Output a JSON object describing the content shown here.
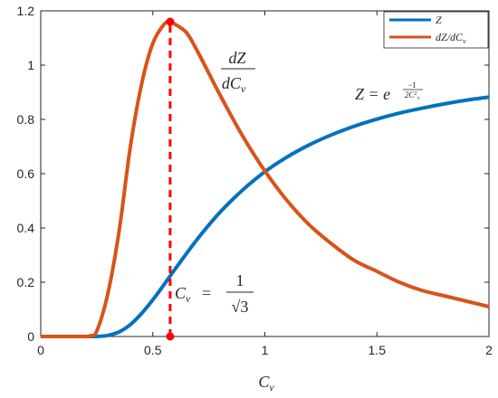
{
  "chart_data": {
    "type": "line",
    "xlabel": "C_v",
    "ylabel": "",
    "xlim": [
      0,
      2
    ],
    "ylim": [
      0,
      1.2
    ],
    "xticks": [
      "0",
      "0.5",
      "1",
      "1.5",
      "2"
    ],
    "yticks": [
      "0",
      "0.2",
      "0.4",
      "0.6",
      "0.8",
      "1",
      "1.2"
    ],
    "grid": false,
    "legend_position": "top-right",
    "series": [
      {
        "name": "Z",
        "color": "#0072BD",
        "x": [
          0,
          0.2,
          0.25,
          0.3,
          0.35,
          0.4,
          0.45,
          0.5,
          0.55,
          0.5774,
          0.6,
          0.7,
          0.8,
          0.9,
          1.0,
          1.1,
          1.2,
          1.3,
          1.4,
          1.5,
          1.6,
          1.7,
          1.8,
          1.9,
          2.0
        ],
        "y": [
          0,
          0.0,
          0.0003,
          0.004,
          0.017,
          0.044,
          0.085,
          0.135,
          0.191,
          0.223,
          0.249,
          0.36,
          0.458,
          0.539,
          0.607,
          0.662,
          0.707,
          0.744,
          0.775,
          0.801,
          0.823,
          0.841,
          0.857,
          0.871,
          0.882
        ]
      },
      {
        "name": "dZ/dC_v",
        "color": "#D95319",
        "x": [
          0,
          0.2,
          0.22,
          0.25,
          0.3,
          0.35,
          0.4,
          0.45,
          0.5,
          0.55,
          0.5774,
          0.6,
          0.65,
          0.7,
          0.8,
          0.9,
          1.0,
          1.1,
          1.2,
          1.3,
          1.4,
          1.5,
          1.6,
          1.7,
          1.8,
          1.9,
          2.0
        ],
        "y": [
          0,
          0.0,
          0.003,
          0.02,
          0.16,
          0.39,
          0.7,
          0.93,
          1.08,
          1.15,
          1.16,
          1.15,
          1.12,
          1.05,
          0.89,
          0.74,
          0.61,
          0.5,
          0.41,
          0.34,
          0.28,
          0.24,
          0.2,
          0.17,
          0.15,
          0.13,
          0.11
        ]
      }
    ],
    "marker_line": {
      "x": 0.5774,
      "y_top": 1.16,
      "color": "#FF0000"
    },
    "annotations": {
      "derivative_num": "dZ",
      "derivative_den": "dC",
      "derivative_sub": "v",
      "z_lhs": "Z = e",
      "z_exp_num": "−1",
      "z_exp_den": "2C",
      "z_exp_sup": "2",
      "z_exp_sub": "v",
      "cv_lhs": "C",
      "cv_lhs_sub": "v",
      "cv_eq": "=",
      "cv_num": "1",
      "cv_den": "√3"
    }
  }
}
